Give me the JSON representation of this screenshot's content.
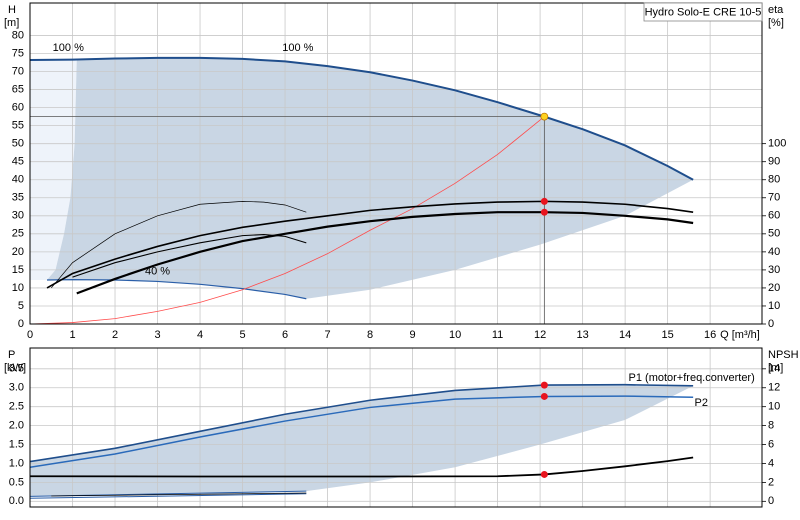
{
  "chart_data": [
    {
      "type": "line",
      "title": "Hydro Solo-E CRE 10-5",
      "ylabel": "H",
      "yunit": "[m]",
      "y2label": "eta",
      "y2unit": "[%]",
      "xlabel": "Q [m³/h]",
      "xlim": [
        0,
        17.22
      ],
      "xticks": [
        0,
        1,
        2,
        3,
        4,
        5,
        6,
        7,
        8,
        9,
        10,
        11,
        12,
        13,
        14,
        15,
        16
      ],
      "show_xtick_labels": true,
      "ylim": [
        0,
        89
      ],
      "yticks": [
        0,
        5,
        10,
        15,
        20,
        25,
        30,
        35,
        40,
        45,
        50,
        55,
        60,
        65,
        70,
        75,
        80
      ],
      "y2lim": [
        0,
        178
      ],
      "y2ticks": [
        0,
        10,
        20,
        30,
        40,
        50,
        60,
        70,
        80,
        90,
        100
      ],
      "grid": true,
      "areas": [
        {
          "color": "#eef3fa",
          "x": [
            0,
            1.1,
            1.05,
            0.95,
            0.8,
            0.6,
            0.4,
            0
          ],
          "values": [
            73.2,
            73.3,
            50,
            35,
            25,
            15,
            12.2,
            12.2
          ]
        },
        {
          "color": "#c9d6e4",
          "x": [
            1.1,
            2,
            3,
            4,
            5,
            6,
            7,
            8,
            9,
            10,
            11,
            12.1,
            13,
            14,
            15,
            15.6,
            14,
            12,
            10,
            8,
            6.5,
            6,
            5,
            4,
            3,
            2,
            1,
            0.4,
            0.6,
            0.8,
            0.95,
            1.05
          ],
          "values": [
            73.3,
            73.6,
            73.8,
            73.8,
            73.5,
            72.8,
            71.5,
            69.8,
            67.5,
            64.8,
            61.5,
            57.5,
            54,
            49.5,
            43.8,
            40,
            30,
            22,
            15,
            9.5,
            7,
            8.2,
            9.8,
            11,
            11.8,
            12.2,
            12.3,
            12.2,
            15,
            25,
            35,
            50
          ]
        }
      ],
      "annotations": [
        "100 %"
      ],
      "series": [
        {
          "name": "100 %",
          "color": "#1f4e8c",
          "width": 2,
          "x": [
            0,
            1,
            2,
            3,
            4,
            5,
            6,
            7,
            8,
            9,
            10,
            11,
            12.1,
            13,
            14,
            15,
            15.6
          ],
          "values": [
            73.2,
            73.3,
            73.6,
            73.8,
            73.8,
            73.5,
            72.8,
            71.5,
            69.8,
            67.5,
            64.8,
            61.5,
            57.5,
            54,
            49.5,
            43.8,
            40
          ]
        },
        {
          "name": "40 %",
          "color": "#2a5ea8",
          "width": 1.2,
          "x": [
            0.4,
            1,
            2,
            3,
            4,
            5,
            6,
            6.5
          ],
          "values": [
            12.2,
            12.3,
            12.2,
            11.8,
            11,
            9.8,
            8.2,
            7
          ]
        },
        {
          "color": "#ff4b4b",
          "width": 0.8,
          "x": [
            0,
            1,
            2,
            3,
            4,
            5,
            6,
            7,
            8,
            9,
            10,
            11,
            12.1
          ],
          "values": [
            0,
            0.4,
            1.5,
            3.5,
            6,
            9.5,
            14,
            19.5,
            26,
            32,
            39,
            47,
            57.5
          ]
        },
        {
          "color": "#000000",
          "width": 1.6,
          "axis": "y2",
          "x": [
            0.4,
            1,
            2,
            3,
            4,
            5,
            6,
            7,
            8,
            9,
            10,
            11,
            12.1,
            13,
            14,
            15,
            15.6
          ],
          "values": [
            20,
            28,
            36,
            43,
            49,
            53.6,
            57,
            60,
            63,
            65,
            66.6,
            67.6,
            68,
            67.6,
            66.4,
            64,
            62
          ]
        },
        {
          "color": "#000000",
          "width": 2.2,
          "axis": "y2",
          "x": [
            1.1,
            2,
            3,
            4,
            5,
            6,
            7,
            8,
            9,
            10,
            11,
            12.1,
            13,
            14,
            15,
            15.6
          ],
          "values": [
            17,
            25,
            33,
            40,
            46,
            50,
            54,
            57,
            59.4,
            61,
            62,
            62,
            61.6,
            60,
            58,
            56
          ]
        },
        {
          "color": "#000000",
          "width": 1.1,
          "axis": "y2",
          "x": [
            1,
            2,
            3,
            4,
            5,
            5.5,
            6,
            6.5
          ],
          "values": [
            26,
            34,
            40,
            45,
            49,
            49.6,
            48.6,
            45
          ]
        },
        {
          "color": "#000000",
          "width": 0.7,
          "axis": "y2",
          "x": [
            0.5,
            1,
            2,
            3,
            4,
            5,
            5.5,
            6,
            6.5
          ],
          "values": [
            20,
            34,
            50,
            60,
            66.4,
            68,
            67.6,
            66,
            62
          ]
        }
      ],
      "points": [
        {
          "color": "#ffd21f",
          "x": 12.1,
          "value": 57.5,
          "crosshair": true
        },
        {
          "color": "#e8141e",
          "x": 12.1,
          "value": 68,
          "axis": "y2"
        },
        {
          "color": "#e8141e",
          "x": 12.1,
          "value": 62,
          "axis": "y2"
        }
      ]
    },
    {
      "type": "line",
      "ylabel": "P",
      "yunit": "[kW]",
      "y2label": "NPSH",
      "y2unit": "[m]",
      "xlim": [
        0,
        17.22
      ],
      "xticks": [
        0,
        1,
        2,
        3,
        4,
        5,
        6,
        7,
        8,
        9,
        10,
        11,
        12,
        13,
        14,
        15,
        16
      ],
      "show_xtick_labels": false,
      "ylim": [
        -0.15,
        4.05
      ],
      "yticks": [
        {
          "value": 0,
          "label": "0.0"
        },
        0.5,
        {
          "value": 1,
          "label": "1.0"
        },
        1.5,
        {
          "value": 2,
          "label": "2.0"
        },
        2.5,
        {
          "value": 3,
          "label": "3.0"
        },
        3.5
      ],
      "y2lim": [
        -0.6,
        16.2
      ],
      "y2ticks": [
        0,
        2,
        4,
        6,
        8,
        10,
        12,
        14
      ],
      "grid": true,
      "areas": [
        {
          "color": "#c9d6e4",
          "x": [
            0,
            2,
            4,
            6,
            8,
            10,
            12.1,
            14,
            15.6,
            14,
            12,
            10,
            8,
            6.5,
            0
          ],
          "values": [
            1.05,
            1.4,
            1.85,
            2.3,
            2.67,
            2.93,
            3.07,
            3.08,
            3.05,
            2.15,
            1.5,
            0.9,
            0.5,
            0.27,
            0.13
          ]
        }
      ],
      "series": [
        {
          "name": "P1 (motor+freq.converter)",
          "color": "#1f4e8c",
          "width": 1.6,
          "x": [
            0,
            2,
            4,
            6,
            8,
            10,
            12.1,
            14,
            15.6
          ],
          "values": [
            1.05,
            1.4,
            1.85,
            2.3,
            2.67,
            2.93,
            3.07,
            3.08,
            3.05
          ]
        },
        {
          "name": "P2",
          "color": "#2a6aba",
          "width": 1.5,
          "x": [
            0,
            2,
            4,
            6,
            8,
            10,
            12.1,
            14,
            15.6
          ],
          "values": [
            0.9,
            1.25,
            1.7,
            2.12,
            2.48,
            2.7,
            2.77,
            2.78,
            2.75
          ]
        },
        {
          "color": "#2a5ea8",
          "width": 1,
          "x": [
            0,
            6.5
          ],
          "values": [
            0.13,
            0.27
          ]
        },
        {
          "color": "#2a5ea8",
          "width": 1,
          "x": [
            0,
            6.5
          ],
          "values": [
            0.08,
            0.2
          ]
        },
        {
          "color": "#000000",
          "width": 0.7,
          "x": [
            0.5,
            6.5
          ],
          "values": [
            0.14,
            0.22
          ]
        },
        {
          "color": "#000000",
          "width": 1.8,
          "axis": "y2",
          "x": [
            0,
            4,
            8,
            11,
            12.1,
            13,
            14,
            15,
            15.6
          ],
          "values": [
            2.65,
            2.62,
            2.62,
            2.65,
            2.84,
            3.2,
            3.7,
            4.25,
            4.63
          ]
        }
      ],
      "points": [
        {
          "color": "#e8141e",
          "x": 12.1,
          "value": 3.07
        },
        {
          "color": "#e8141e",
          "x": 12.1,
          "value": 2.77
        },
        {
          "color": "#e8141e",
          "x": 12.1,
          "value": 2.84,
          "axis": "y2"
        }
      ]
    }
  ]
}
